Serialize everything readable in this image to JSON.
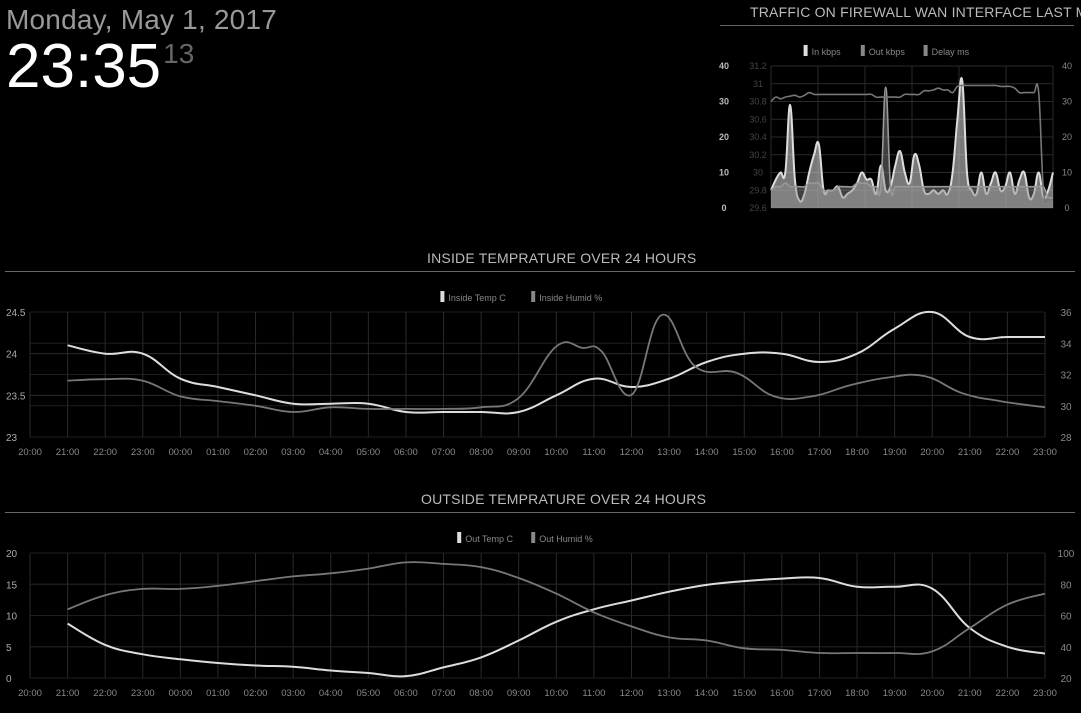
{
  "clock": {
    "date": "Monday, May 1, 2017",
    "time": "23:35",
    "seconds": "13"
  },
  "sections": {
    "traffic_title": "TRAFFIC ON FIREWALL WAN INTERFACE LAST MINUTE",
    "inside_title": "INSIDE TEMPRATURE OVER 24 HOURS",
    "outside_title": "OUTSIDE TEMPRATURE OVER 24 HOURS"
  },
  "colors": {
    "primary": "#dddddd",
    "secondary": "#888888",
    "tertiary": "#555555",
    "grid": "#2a2a2a"
  },
  "chart_data": [
    {
      "id": "traffic",
      "type": "area",
      "legend": [
        "In kbps",
        "Out kbps",
        "Delay ms"
      ],
      "legend_position": "top",
      "grid": true,
      "y_left_ticks": [
        "0",
        "10",
        "20",
        "30",
        "40"
      ],
      "y_left_range": [
        0,
        40
      ],
      "y_mid_ticks": [
        "29.6",
        "29.8",
        "30",
        "30.2",
        "30.4",
        "30.6",
        "30.8",
        "31",
        "31.2"
      ],
      "y_mid_range": [
        29.6,
        31.2
      ],
      "y_right_ticks": [
        "0",
        "10",
        "20",
        "30",
        "40"
      ],
      "y_right_range": [
        0,
        40
      ],
      "x_count": 60,
      "series": [
        {
          "name": "In kbps",
          "axis": "left",
          "values": [
            5,
            8,
            10,
            10,
            29,
            8,
            2,
            4,
            10,
            15,
            18,
            5,
            5,
            5,
            6,
            3,
            4,
            5,
            7,
            10,
            8,
            8,
            4,
            12,
            5,
            6,
            12,
            16,
            10,
            7,
            15,
            12,
            5,
            4,
            5,
            4,
            5,
            4,
            10,
            25,
            36,
            10,
            5,
            4,
            10,
            4,
            7,
            10,
            5,
            6,
            10,
            4,
            8,
            10,
            3,
            4,
            10,
            3,
            5,
            10
          ]
        },
        {
          "name": "Out kbps",
          "axis": "left",
          "values": [
            5,
            6,
            6,
            7,
            6,
            6,
            6,
            6,
            7,
            7,
            7,
            5,
            5,
            5,
            6,
            6,
            6,
            6,
            7,
            7,
            7,
            6,
            6,
            6,
            34,
            6,
            6,
            6,
            6,
            6,
            6,
            6,
            6,
            6,
            6,
            6,
            6,
            6,
            6,
            6,
            6,
            6,
            6,
            6,
            6,
            6,
            6,
            6,
            6,
            6,
            6,
            6,
            6,
            6,
            6,
            6,
            6,
            6,
            3,
            3
          ]
        },
        {
          "name": "Delay ms",
          "axis": "mid",
          "values": [
            30.8,
            30.85,
            30.83,
            30.85,
            30.86,
            30.87,
            30.85,
            30.87,
            30.9,
            30.88,
            30.88,
            30.88,
            30.88,
            30.88,
            30.88,
            30.88,
            30.88,
            30.88,
            30.88,
            30.88,
            30.88,
            30.88,
            30.85,
            30.85,
            30.85,
            30.85,
            30.85,
            30.85,
            30.88,
            30.88,
            30.88,
            30.88,
            30.92,
            30.92,
            30.93,
            30.95,
            30.93,
            30.93,
            30.9,
            30.97,
            30.98,
            30.98,
            30.98,
            30.98,
            30.98,
            30.98,
            30.98,
            30.98,
            30.97,
            30.97,
            30.97,
            30.95,
            30.9,
            30.9,
            30.9,
            30.9,
            30.9,
            29.8,
            29.7,
            29.7
          ]
        }
      ]
    },
    {
      "id": "inside",
      "type": "line",
      "legend": [
        "Inside Temp C",
        "Inside Humid %"
      ],
      "legend_position": "top",
      "grid": true,
      "x_ticks": [
        "20:00",
        "21:00",
        "22:00",
        "23:00",
        "00:00",
        "01:00",
        "02:00",
        "03:00",
        "04:00",
        "05:00",
        "06:00",
        "07:00",
        "08:00",
        "09:00",
        "10:00",
        "11:00",
        "12:00",
        "13:00",
        "14:00",
        "15:00",
        "16:00",
        "17:00",
        "18:00",
        "19:00",
        "20:00",
        "21:00",
        "22:00",
        "23:00"
      ],
      "y_left_ticks": [
        "23",
        "23.5",
        "24",
        "24.5"
      ],
      "ylim": [
        23,
        24.5
      ],
      "y_right_ticks": [
        "28",
        "30",
        "32",
        "34",
        "36"
      ],
      "ylim_right": [
        28,
        36
      ],
      "series": [
        {
          "name": "Inside Temp C",
          "axis": "left",
          "x": [
            1,
            2,
            3,
            4,
            5,
            6,
            7,
            8,
            9,
            10,
            11,
            12,
            13,
            14,
            15,
            16,
            17,
            18,
            19,
            20,
            21,
            22,
            23,
            24,
            25,
            26,
            27
          ],
          "values": [
            24.1,
            24.0,
            24.0,
            23.7,
            23.6,
            23.5,
            23.4,
            23.4,
            23.4,
            23.3,
            23.3,
            23.3,
            23.3,
            23.5,
            23.7,
            23.6,
            23.7,
            23.9,
            24.0,
            24.0,
            23.9,
            24.0,
            24.3,
            24.5,
            24.2,
            24.2,
            24.2
          ]
        },
        {
          "name": "Inside Humid %",
          "axis": "right",
          "x": [
            1,
            2,
            3,
            4,
            5,
            6,
            7,
            8,
            9,
            10,
            11,
            12,
            13,
            14,
            14.7,
            15.2,
            16,
            16.8,
            17.7,
            18.8,
            19.8,
            20.8,
            21.8,
            22.8,
            23.8,
            24.8,
            25.8,
            27
          ],
          "values": [
            31.6,
            31.7,
            31.6,
            30.6,
            30.3,
            30.0,
            29.6,
            29.9,
            29.8,
            29.8,
            29.8,
            29.9,
            30.5,
            33.8,
            33.7,
            33.5,
            30.7,
            35.8,
            32.5,
            32.1,
            30.6,
            30.6,
            31.3,
            31.8,
            31.9,
            30.8,
            30.3,
            29.9
          ]
        }
      ]
    },
    {
      "id": "outside",
      "type": "line",
      "legend": [
        "Out Temp C",
        "Out Humid %"
      ],
      "legend_position": "top",
      "grid": true,
      "x_ticks": [
        "20:00",
        "21:00",
        "22:00",
        "23:00",
        "00:00",
        "01:00",
        "02:00",
        "03:00",
        "04:00",
        "05:00",
        "06:00",
        "07:00",
        "08:00",
        "09:00",
        "10:00",
        "11:00",
        "12:00",
        "13:00",
        "14:00",
        "15:00",
        "16:00",
        "17:00",
        "18:00",
        "19:00",
        "20:00",
        "21:00",
        "22:00",
        "23:00"
      ],
      "y_left_ticks": [
        "0",
        "5",
        "10",
        "15",
        "20"
      ],
      "ylim": [
        0,
        20
      ],
      "y_right_ticks": [
        "20",
        "40",
        "60",
        "80",
        "100"
      ],
      "ylim_right": [
        20,
        100
      ],
      "series": [
        {
          "name": "Out Temp C",
          "axis": "left",
          "x": [
            1,
            2,
            3,
            4,
            5,
            6,
            7,
            8,
            9,
            10,
            11,
            12,
            13,
            14,
            15,
            16,
            17,
            18,
            19,
            20,
            21,
            22,
            23,
            24,
            25,
            26,
            27
          ],
          "values": [
            8.7,
            5.3,
            3.8,
            3.0,
            2.4,
            2.0,
            1.8,
            1.2,
            0.8,
            0.3,
            1.7,
            3.3,
            6.0,
            9.0,
            11.0,
            12.4,
            13.8,
            14.9,
            15.5,
            15.9,
            16.0,
            14.6,
            14.6,
            14.3,
            8.0,
            5.0,
            3.9
          ]
        },
        {
          "name": "Out Humid %",
          "axis": "right",
          "x": [
            1,
            2,
            3,
            4,
            5,
            6,
            7,
            8,
            9,
            10,
            11,
            12,
            13,
            14,
            15,
            16,
            17,
            18,
            19,
            20,
            21,
            22,
            23,
            24,
            25,
            26,
            27
          ],
          "values": [
            64,
            73,
            77,
            77,
            79,
            82,
            85,
            87,
            90,
            94,
            93,
            91,
            84,
            74,
            62,
            53,
            46,
            44,
            39,
            38,
            36,
            36,
            36,
            37,
            52,
            67,
            74
          ]
        }
      ]
    }
  ]
}
